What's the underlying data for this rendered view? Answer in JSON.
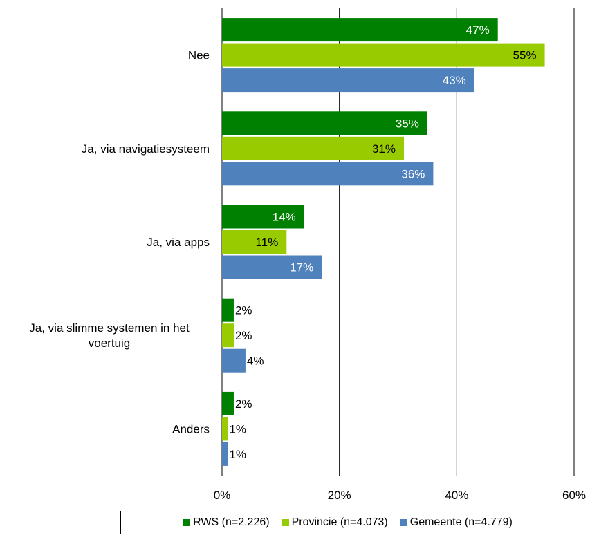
{
  "chart_data": {
    "type": "bar",
    "orientation": "horizontal",
    "categories": [
      [
        "Nee"
      ],
      [
        "Ja, via navigatiesysteem"
      ],
      [
        "Ja, via apps"
      ],
      [
        "Ja, via slimme systemen in het",
        "voertuig"
      ],
      [
        "Anders"
      ]
    ],
    "series": [
      {
        "name": "RWS (n=2.226)",
        "color": "#008000",
        "values": [
          47,
          35,
          14,
          2,
          2
        ],
        "labels": [
          "47%",
          "35%",
          "14%",
          "2%",
          "2%"
        ]
      },
      {
        "name": "Provincie (n=4.073)",
        "color": "#99CC00",
        "values": [
          55,
          31,
          11,
          2,
          1
        ],
        "labels": [
          "55%",
          "31%",
          "11%",
          "2%",
          "1%"
        ]
      },
      {
        "name": "Gemeente (n=4.779)",
        "color": "#4F81BD",
        "values": [
          43,
          36,
          17,
          4,
          1
        ],
        "labels": [
          "43%",
          "36%",
          "17%",
          "4%",
          "1%"
        ]
      }
    ],
    "xlim": [
      0,
      60
    ],
    "xticks": [
      "0%",
      "20%",
      "40%",
      "60%"
    ],
    "grid": true,
    "legend_position": "bottom"
  }
}
